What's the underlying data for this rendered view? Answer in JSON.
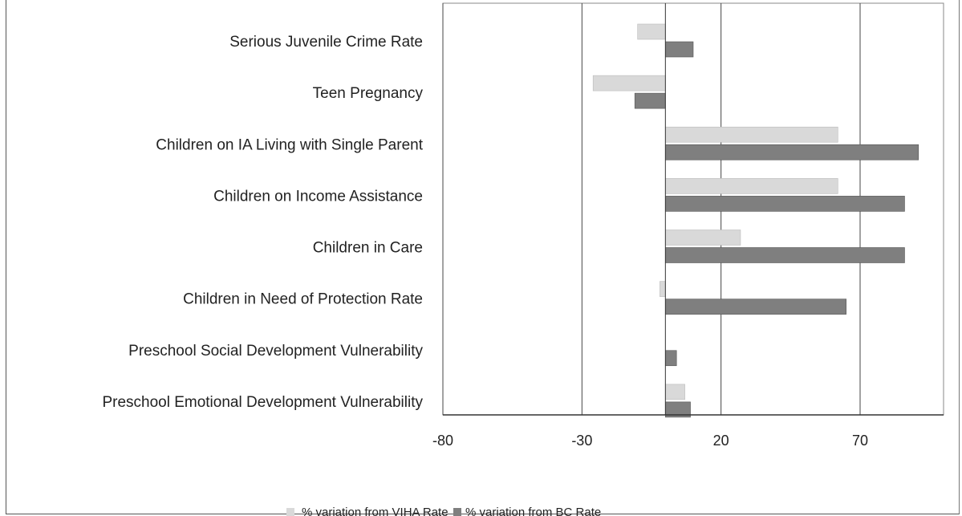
{
  "chart_data": {
    "type": "bar",
    "orientation": "horizontal",
    "categories": [
      "Serious Juvenile Crime Rate",
      "Teen Pregnancy",
      "Children on IA Living with Single Parent",
      "Children on Income Assistance",
      "Children in Care",
      "Children in Need of Protection Rate",
      "Preschool Social Development Vulnerability",
      "Preschool Emotional Development Vulnerability"
    ],
    "series": [
      {
        "name": "% variation from VIHA Rate",
        "color": "#d9d9d9",
        "values": [
          -10,
          -26,
          62,
          62,
          27,
          -2,
          0,
          7
        ]
      },
      {
        "name": "% variation from BC Rate",
        "color": "#7f7f7f",
        "values": [
          10,
          -11,
          91,
          86,
          86,
          65,
          4,
          9
        ]
      }
    ],
    "xlim": [
      -80,
      100
    ],
    "xticks": [
      -80,
      -30,
      20,
      70
    ],
    "grid": true,
    "legend_position": "bottom"
  }
}
